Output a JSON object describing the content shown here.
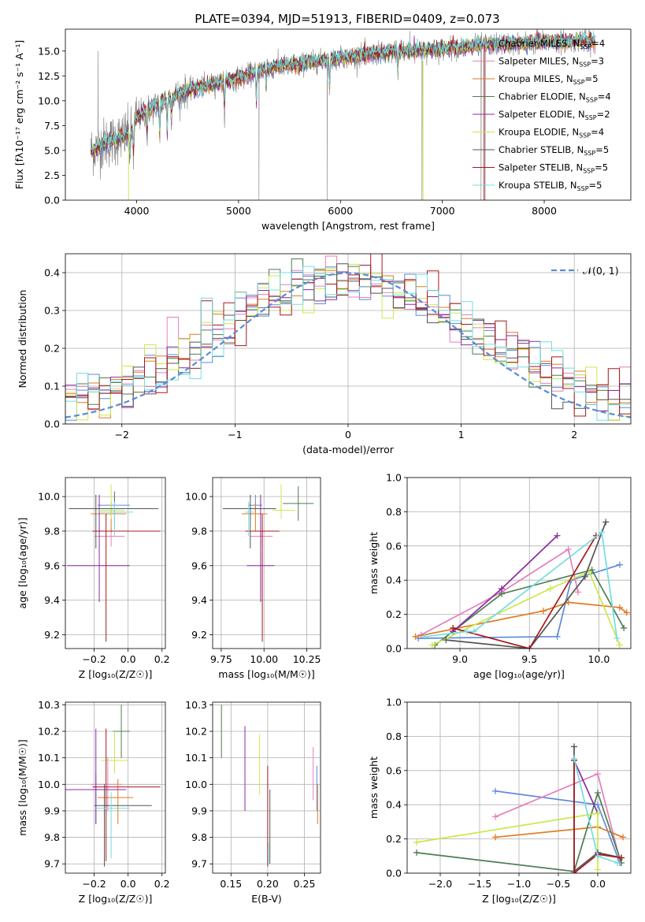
{
  "figure_title": "PLATE=0394, MJD=51913, FIBERID=0409, z=0.073",
  "models": [
    {
      "name": "Chabrier MILES",
      "nssp": "4",
      "color": "#5b8bd9"
    },
    {
      "name": "Salpeter MILES",
      "nssp": "3",
      "color": "#e67fba"
    },
    {
      "name": "Kroupa MILES",
      "nssp": "5",
      "color": "#e07a22"
    },
    {
      "name": "Chabrier ELODIE",
      "nssp": "4",
      "color": "#4f7d52"
    },
    {
      "name": "Salpeter ELODIE",
      "nssp": "2",
      "color": "#8a2aa6"
    },
    {
      "name": "Kroupa ELODIE",
      "nssp": "4",
      "color": "#cbe84a"
    },
    {
      "name": "Chabrier STELIB",
      "nssp": "5",
      "color": "#555555"
    },
    {
      "name": "Salpeter STELIB",
      "nssp": "5",
      "color": "#a8181a"
    },
    {
      "name": "Kroupa STELIB",
      "nssp": "5",
      "color": "#72dde0"
    }
  ],
  "chart_data": [
    {
      "id": "spectrum",
      "type": "line",
      "xlabel": "wavelength [Angstrom, rest frame]",
      "ylabel": "Flux [fλ10⁻¹⁷ erg cm⁻² s⁻¹ A⁻¹]",
      "xlim": [
        3300,
        8850
      ],
      "ylim": [
        0,
        17.2
      ],
      "xticks": [
        "4000",
        "5000",
        "6000",
        "7000",
        "8000"
      ],
      "yticks": [
        "0.0",
        "2.5",
        "5.0",
        "7.5",
        "10.0",
        "12.5",
        "15.0"
      ],
      "continuum": [
        [
          3550,
          5.0
        ],
        [
          3700,
          5.8
        ],
        [
          3850,
          6.3
        ],
        [
          3950,
          6.8
        ],
        [
          4000,
          8.3
        ],
        [
          4100,
          9.0
        ],
        [
          4300,
          10.2
        ],
        [
          4500,
          11.0
        ],
        [
          4800,
          11.8
        ],
        [
          5000,
          12.3
        ],
        [
          5300,
          13.3
        ],
        [
          5600,
          13.7
        ],
        [
          6000,
          14.3
        ],
        [
          6300,
          14.7
        ],
        [
          6600,
          15.0
        ],
        [
          7000,
          15.2
        ],
        [
          7400,
          15.6
        ],
        [
          7800,
          15.8
        ],
        [
          8200,
          16.0
        ],
        [
          8500,
          16.0
        ]
      ],
      "absorption_lines": [
        [
          3934,
          2.5
        ],
        [
          3969,
          2.8
        ],
        [
          4102,
          3.0
        ],
        [
          4226,
          3.5
        ],
        [
          4300,
          4.0
        ],
        [
          4340,
          2.2
        ],
        [
          4861,
          3.0
        ],
        [
          5175,
          3.5
        ],
        [
          5270,
          2.0
        ],
        [
          5892,
          3.5
        ],
        [
          6563,
          2.2
        ],
        [
          8542,
          2.5
        ],
        [
          8662,
          2.0
        ]
      ],
      "spikes": [
        [
          3620,
          15.0
        ],
        [
          5200,
          0.0
        ],
        [
          5870,
          0.0
        ],
        [
          6800,
          0.0
        ],
        [
          7380,
          0.0
        ],
        [
          7420,
          0.0
        ],
        [
          6680,
          17.0
        ]
      ]
    },
    {
      "id": "residuals",
      "type": "line",
      "xlabel": "(data-model)/error",
      "ylabel": "Normed distribution",
      "xlim": [
        -2.5,
        2.5
      ],
      "ylim": [
        0,
        0.45
      ],
      "xticks": [
        "−2",
        "−1",
        "0",
        "1",
        "2"
      ],
      "yticks": [
        "0.0",
        "0.1",
        "0.2",
        "0.3",
        "0.4"
      ],
      "reference_curve": {
        "name": "𝒩(0, 1)",
        "mean": 0,
        "sigma": 1,
        "color": "#5b8bd9"
      },
      "bin_width": 0.1
    },
    {
      "id": "age_vs_Z",
      "type": "scatter",
      "xlabel": "Z [log₁₀(Z/Z☉)]",
      "ylabel": "age  [log₁₀(age/yr)]",
      "xlim": [
        -0.37,
        0.22
      ],
      "ylim": [
        9.12,
        10.11
      ],
      "xticks": [
        "−0.2",
        "0.0",
        "0.2"
      ],
      "yticks": [
        "9.2",
        "9.4",
        "9.6",
        "9.8",
        "10.0"
      ],
      "points": [
        {
          "x": -0.08,
          "y": 9.95,
          "xerr": [
            0.1,
            0.09
          ],
          "yerr": [
            0.05,
            0.06
          ]
        },
        {
          "x": -0.1,
          "y": 9.77,
          "xerr": [
            0.1,
            0.08
          ],
          "yerr": [
            0.06,
            0.05
          ]
        },
        {
          "x": -0.1,
          "y": 9.9,
          "xerr": [
            0.12,
            0.09
          ],
          "yerr": [
            0.1,
            0.07
          ]
        },
        {
          "x": -0.08,
          "y": 9.93,
          "xerr": [
            0.1,
            0.26
          ],
          "yerr": [
            0.1,
            0.1
          ]
        },
        {
          "x": -0.17,
          "y": 9.6,
          "xerr": [
            0.19,
            0.18
          ],
          "yerr": [
            0.21,
            0.41
          ]
        },
        {
          "x": -0.1,
          "y": 9.92,
          "xerr": [
            0.08,
            0.08
          ],
          "yerr": [
            0.05,
            0.15
          ]
        },
        {
          "x": -0.19,
          "y": 9.93,
          "xerr": [
            0.16,
            0.36
          ],
          "yerr": [
            0.23,
            0.08
          ]
        },
        {
          "x": -0.13,
          "y": 9.8,
          "xerr": [
            0.08,
            0.32
          ],
          "yerr": [
            0.64,
            0.1
          ]
        },
        {
          "x": -0.08,
          "y": 9.91,
          "xerr": [
            0.09,
            0.11
          ],
          "yerr": [
            0.14,
            0.06
          ]
        }
      ]
    },
    {
      "id": "age_vs_mass",
      "type": "scatter",
      "xlabel": "mass [log₁₀(M/M☉)]",
      "ylabel": "",
      "xlim": [
        9.7,
        10.33
      ],
      "ylim": [
        9.12,
        10.11
      ],
      "xticks": [
        "9.75",
        "10.00",
        "10.25"
      ],
      "yticks": [
        "9.2",
        "9.4",
        "9.6",
        "9.8",
        "10.0"
      ],
      "points": [
        {
          "x": 9.95,
          "y": 9.95,
          "xerr": [
            0.04,
            0.04
          ],
          "yerr": [
            0.05,
            0.06
          ]
        },
        {
          "x": 9.99,
          "y": 9.77,
          "xerr": [
            0.07,
            0.06
          ],
          "yerr": [
            0.06,
            0.05
          ]
        },
        {
          "x": 9.95,
          "y": 9.9,
          "xerr": [
            0.08,
            0.07
          ],
          "yerr": [
            0.1,
            0.07
          ]
        },
        {
          "x": 10.2,
          "y": 9.96,
          "xerr": [
            0.09,
            0.09
          ],
          "yerr": [
            0.1,
            0.1
          ]
        },
        {
          "x": 9.98,
          "y": 9.6,
          "xerr": [
            0.08,
            0.08
          ],
          "yerr": [
            0.21,
            0.41
          ]
        },
        {
          "x": 10.1,
          "y": 9.92,
          "xerr": [
            0.05,
            0.08
          ],
          "yerr": [
            0.05,
            0.15
          ]
        },
        {
          "x": 9.92,
          "y": 9.93,
          "xerr": [
            0.16,
            0.15
          ],
          "yerr": [
            0.23,
            0.08
          ]
        },
        {
          "x": 9.99,
          "y": 9.8,
          "xerr": [
            0.1,
            0.1
          ],
          "yerr": [
            0.64,
            0.1
          ]
        },
        {
          "x": 9.91,
          "y": 9.91,
          "xerr": [
            0.02,
            0.03
          ],
          "yerr": [
            0.14,
            0.06
          ]
        }
      ]
    },
    {
      "id": "mass_weight_vs_age",
      "type": "line",
      "xlabel": "age  [log₁₀(age/yr)]",
      "ylabel": "mass weight",
      "xlim": [
        8.62,
        10.23
      ],
      "ylim": [
        0,
        1.0
      ],
      "xticks": [
        "9.0",
        "9.5",
        "10.0"
      ],
      "yticks": [
        "0.0",
        "0.2",
        "0.4",
        "0.6",
        "0.8",
        "1.0"
      ],
      "series": [
        {
          "x": [
            8.7,
            9.7,
            9.8,
            10.15
          ],
          "y": [
            0.06,
            0.07,
            0.4,
            0.49
          ]
        },
        {
          "x": [
            8.72,
            9.3,
            9.78,
            9.85
          ],
          "y": [
            0.08,
            0.33,
            0.58,
            0.33
          ]
        },
        {
          "x": [
            8.68,
            9.6,
            9.78,
            10.15,
            10.2
          ],
          "y": [
            0.07,
            0.22,
            0.27,
            0.24,
            0.21
          ]
        },
        {
          "x": [
            8.82,
            9.3,
            9.95,
            10.18
          ],
          "y": [
            0.02,
            0.32,
            0.46,
            0.12
          ]
        },
        {
          "x": [
            8.95,
            9.3,
            9.7
          ],
          "y": [
            0.1,
            0.35,
            0.66
          ]
        },
        {
          "x": [
            8.8,
            9.65,
            9.93,
            10.15
          ],
          "y": [
            0.02,
            0.35,
            0.45,
            0.02
          ]
        },
        {
          "x": [
            8.9,
            9.5,
            9.9,
            10.05
          ],
          "y": [
            0.05,
            0.0,
            0.42,
            0.74
          ]
        },
        {
          "x": [
            8.95,
            9.5,
            9.98
          ],
          "y": [
            0.12,
            0.0,
            0.66
          ]
        },
        {
          "x": [
            8.75,
            9.05,
            9.1,
            10.02,
            10.13
          ],
          "y": [
            0.07,
            0.1,
            0.1,
            0.68,
            0.06
          ]
        }
      ]
    },
    {
      "id": "mass_vs_Z",
      "type": "scatter",
      "xlabel": "Z [log₁₀(Z/Z☉)]",
      "ylabel": "mass [log₁₀(M/M☉)]",
      "xlim": [
        -0.37,
        0.22
      ],
      "ylim": [
        9.665,
        10.31
      ],
      "xticks": [
        "−0.2",
        "0.0",
        "0.2"
      ],
      "yticks": [
        "9.7",
        "9.8",
        "9.9",
        "10.0",
        "10.1",
        "10.2",
        "10.3"
      ],
      "points": [
        {
          "x": -0.19,
          "y": 9.98,
          "xerr": [
            0.1,
            0.09
          ],
          "yerr": [
            0.13,
            0.06
          ]
        },
        {
          "x": -0.12,
          "y": 10.0,
          "xerr": [
            0.1,
            0.08
          ],
          "yerr": [
            0.1,
            0.1
          ]
        },
        {
          "x": -0.06,
          "y": 9.95,
          "xerr": [
            0.12,
            0.09
          ],
          "yerr": [
            0.1,
            0.07
          ]
        },
        {
          "x": -0.04,
          "y": 10.2,
          "xerr": [
            0.05,
            0.05
          ],
          "yerr": [
            0.1,
            0.1
          ]
        },
        {
          "x": -0.19,
          "y": 9.98,
          "xerr": [
            0.19,
            0.18
          ],
          "yerr": [
            0.13,
            0.23
          ]
        },
        {
          "x": -0.08,
          "y": 10.09,
          "xerr": [
            0.08,
            0.08
          ],
          "yerr": [
            0.05,
            0.11
          ]
        },
        {
          "x": -0.14,
          "y": 9.92,
          "xerr": [
            0.06,
            0.28
          ],
          "yerr": [
            0.23,
            0.08
          ]
        },
        {
          "x": -0.13,
          "y": 9.99,
          "xerr": [
            0.08,
            0.32
          ],
          "yerr": [
            0.28,
            0.22
          ]
        },
        {
          "x": -0.1,
          "y": 9.91,
          "xerr": [
            0.09,
            0.11
          ],
          "yerr": [
            0.19,
            0.06
          ]
        }
      ]
    },
    {
      "id": "mass_vs_ebv",
      "type": "scatter",
      "xlabel": "E(B-V)",
      "ylabel": "",
      "xlim": [
        0.125,
        0.272
      ],
      "ylim": [
        9.665,
        10.31
      ],
      "xticks": [
        "0.15",
        "0.20",
        "0.25"
      ],
      "yticks": [
        "9.7",
        "9.8",
        "9.9",
        "10.0",
        "10.1",
        "10.2",
        "10.3"
      ],
      "points": [
        {
          "x": 0.267,
          "y": 10.0,
          "yerr": [
            0.1,
            0.07
          ]
        },
        {
          "x": 0.262,
          "y": 10.02,
          "yerr": [
            0.08,
            0.12
          ]
        },
        {
          "x": 0.268,
          "y": 9.95,
          "yerr": [
            0.1,
            0.05
          ]
        },
        {
          "x": 0.137,
          "y": 10.2,
          "yerr": [
            0.1,
            0.1
          ]
        },
        {
          "x": 0.169,
          "y": 10.06,
          "yerr": [
            0.16,
            0.16
          ]
        },
        {
          "x": 0.189,
          "y": 10.06,
          "yerr": [
            0.1,
            0.13
          ]
        },
        {
          "x": 0.203,
          "y": 9.84,
          "yerr": [
            0.14,
            0.14
          ]
        },
        {
          "x": 0.2,
          "y": 9.87,
          "yerr": [
            0.18,
            0.2
          ]
        },
        {
          "x": 0.201,
          "y": 9.74,
          "yerr": [
            0.04,
            0.04
          ]
        }
      ]
    },
    {
      "id": "mass_weight_vs_Z",
      "type": "line",
      "xlabel": "Z [log₁₀(Z/Z☉)]",
      "ylabel": "mass weight",
      "xlim": [
        -2.42,
        0.42
      ],
      "ylim": [
        0,
        1.0
      ],
      "xticks": [
        "−2.0",
        "−1.5",
        "−1.0",
        "−0.5",
        "0.0"
      ],
      "yticks": [
        "0.0",
        "0.2",
        "0.4",
        "0.6",
        "0.8",
        "1.0"
      ],
      "series": [
        {
          "x": [
            -1.3,
            0.0,
            0.28
          ],
          "y": [
            0.48,
            0.4,
            0.06
          ]
        },
        {
          "x": [
            -1.3,
            0.0,
            0.28
          ],
          "y": [
            0.33,
            0.58,
            0.08
          ]
        },
        {
          "x": [
            -1.3,
            0.0,
            0.32
          ],
          "y": [
            0.21,
            0.27,
            0.21
          ]
        },
        {
          "x": [
            -2.3,
            -0.3,
            0.0,
            0.3
          ],
          "y": [
            0.12,
            0.01,
            0.47,
            0.06
          ]
        },
        {
          "x": [
            -0.3,
            0.0
          ],
          "y": [
            0.66,
            0.35
          ]
        },
        {
          "x": [
            -2.3,
            0.0,
            0.0
          ],
          "y": [
            0.18,
            0.35,
            0.02
          ]
        },
        {
          "x": [
            -0.3,
            -0.3,
            0.0,
            0.3
          ],
          "y": [
            0.74,
            0.01,
            0.12,
            0.09
          ]
        },
        {
          "x": [
            -0.3,
            -0.3,
            0.0,
            0.3
          ],
          "y": [
            0.66,
            0.0,
            0.11,
            0.09
          ]
        },
        {
          "x": [
            -0.3,
            0.0,
            0.25
          ],
          "y": [
            0.67,
            0.1,
            0.06
          ]
        }
      ]
    }
  ]
}
